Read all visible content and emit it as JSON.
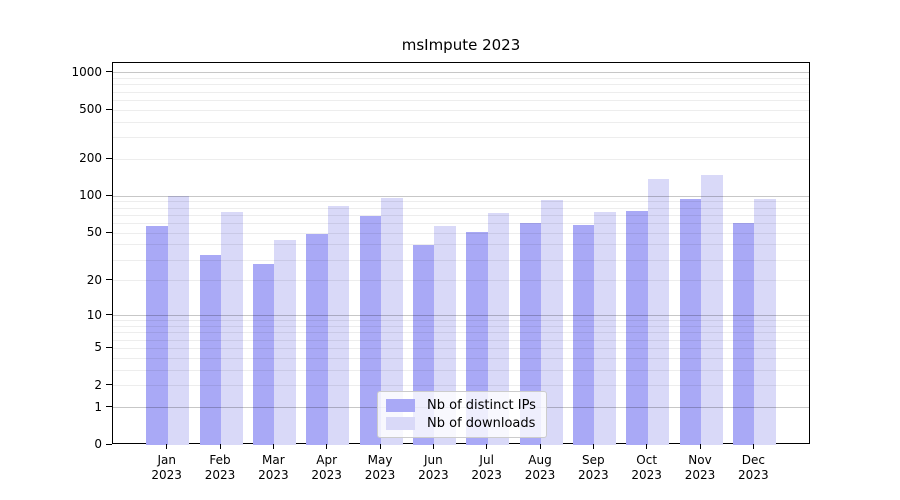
{
  "chart_data": {
    "type": "bar",
    "title": "msImpute 2023",
    "xlabel": "",
    "ylabel": "",
    "yscale": "log1p",
    "ylim": [
      0,
      1200
    ],
    "yticks": [
      1000,
      500,
      200,
      100,
      50,
      20,
      10,
      5,
      2,
      1,
      0
    ],
    "grid": "horizontal, log minor + decade major",
    "categories": [
      "Jan",
      "Feb",
      "Mar",
      "Apr",
      "May",
      "Jun",
      "Jul",
      "Aug",
      "Sep",
      "Oct",
      "Nov",
      "Dec"
    ],
    "year_label": "2023",
    "series": [
      {
        "name": "Nb of distinct IPs",
        "color": "#a9a9f6",
        "values": [
          57,
          33,
          28,
          49,
          69,
          40,
          51,
          61,
          58,
          76,
          96,
          61
        ]
      },
      {
        "name": "Nb of downloads",
        "color": "#d9d9f8",
        "values": [
          100,
          75,
          44,
          84,
          97,
          57,
          73,
          93,
          75,
          138,
          148,
          95
        ]
      }
    ],
    "legend": {
      "position": "lower center",
      "labels": [
        "Nb of distinct IPs",
        "Nb of downloads"
      ]
    }
  }
}
